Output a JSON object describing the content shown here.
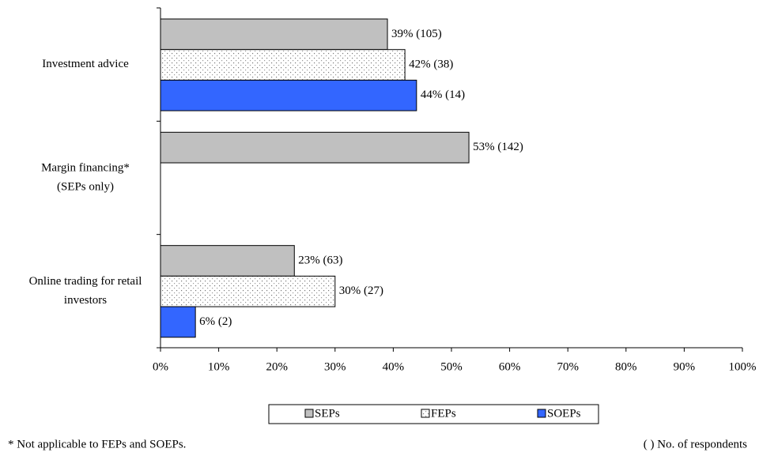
{
  "chart_data": {
    "type": "hbar",
    "categories": [
      [
        "Investment advice"
      ],
      [
        "Margin financing*",
        "(SEPs only)"
      ],
      [
        "Online trading for retail",
        "investors"
      ]
    ],
    "series": [
      {
        "name": "SEPs",
        "color": "#c0c0c0",
        "values": [
          39,
          53,
          23
        ],
        "value_labels": [
          "39% (105)",
          "53% (142)",
          "23% (63)"
        ]
      },
      {
        "name": "FEPs",
        "color": "#ffffff",
        "pattern": "dots",
        "values": [
          42,
          null,
          30
        ],
        "value_labels": [
          "42% (38)",
          null,
          "30% (27)"
        ]
      },
      {
        "name": "SOEPs",
        "color": "#3366ff",
        "values": [
          44,
          null,
          6
        ],
        "value_labels": [
          "44% (14)",
          null,
          "6% (2)"
        ]
      }
    ],
    "xlim": [
      0,
      100
    ],
    "xticks": [
      {
        "value": 0,
        "label": "0%"
      },
      {
        "value": 10,
        "label": "10%"
      },
      {
        "value": 20,
        "label": "20%"
      },
      {
        "value": 30,
        "label": "30%"
      },
      {
        "value": 40,
        "label": "40%"
      },
      {
        "value": 50,
        "label": "50%"
      },
      {
        "value": 60,
        "label": "60%"
      },
      {
        "value": 70,
        "label": "70%"
      },
      {
        "value": 80,
        "label": "80%"
      },
      {
        "value": 90,
        "label": "90%"
      },
      {
        "value": 100,
        "label": "100%"
      }
    ],
    "footnote": "* Not applicable to FEPs and SOEPs.",
    "legend_note": "( ) No. of respondents"
  }
}
